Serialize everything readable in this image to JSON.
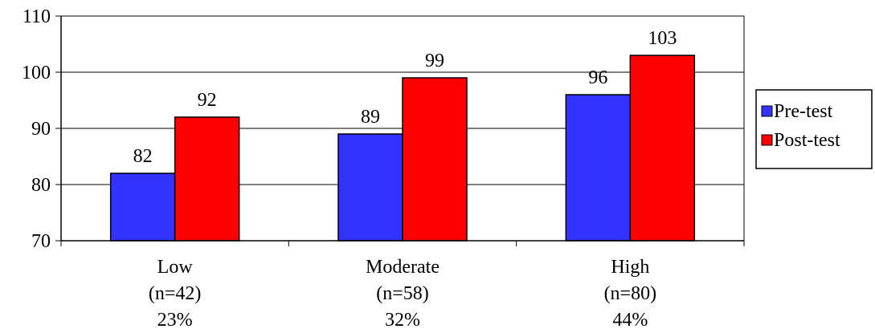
{
  "chart_data": {
    "type": "bar",
    "categories": [
      [
        "Low",
        "(n=42)",
        "23%"
      ],
      [
        "Moderate",
        "(n=58)",
        "32%"
      ],
      [
        "High",
        "(n=80)",
        "44%"
      ]
    ],
    "series": [
      {
        "name": "Pre-test",
        "values": [
          82,
          89,
          96
        ],
        "color": "#3333ff"
      },
      {
        "name": "Post-test",
        "values": [
          92,
          99,
          103
        ],
        "color": "#ff0000"
      }
    ],
    "data_labels": [
      [
        "82",
        "89",
        "96"
      ],
      [
        "92",
        "99",
        "103"
      ]
    ],
    "yticks": [
      {
        "value": 70,
        "label": "70"
      },
      {
        "value": 80,
        "label": "80"
      },
      {
        "value": 90,
        "label": "90"
      },
      {
        "value": 100,
        "label": "100"
      },
      {
        "value": 110,
        "label": "110"
      }
    ],
    "ylim": [
      70,
      110
    ],
    "title": "",
    "xlabel": "",
    "ylabel": "",
    "grid": true,
    "legend_position": "right"
  }
}
